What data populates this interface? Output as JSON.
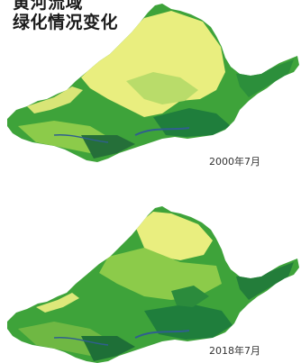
{
  "title": {
    "line1": "黄河流域",
    "line2": "绿化情况变化"
  },
  "maps": [
    {
      "date_label": "2000年7月"
    },
    {
      "date_label": "2018年7月"
    }
  ],
  "colors": {
    "sparse": "#e9ee7f",
    "light_green": "#8ccb4a",
    "green": "#3ea33a",
    "dark_green": "#1f7e3c",
    "water_blue": "#2f5f8e"
  }
}
